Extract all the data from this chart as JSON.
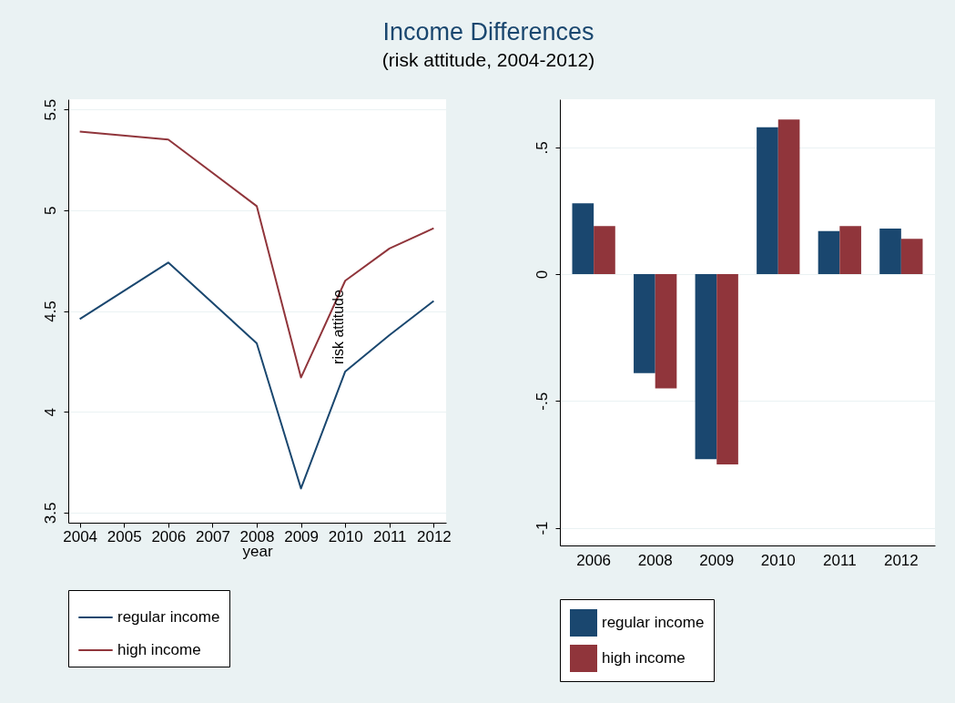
{
  "chart_data": [
    {
      "type": "line",
      "title": "Income Differences",
      "subtitle": "(risk attitude, 2004-2012)",
      "xlabel": "year",
      "annotations": [
        "risk attitude"
      ],
      "x": [
        2004,
        2006,
        2008,
        2009,
        2010,
        2011,
        2012
      ],
      "series": [
        {
          "name": "regular income",
          "color": "#1a476f",
          "values": [
            4.46,
            4.74,
            4.34,
            3.62,
            4.2,
            4.38,
            4.55
          ]
        },
        {
          "name": "high income",
          "color": "#90353b",
          "values": [
            5.39,
            5.35,
            5.02,
            4.17,
            4.65,
            4.81,
            4.91
          ]
        }
      ],
      "xlim": [
        2003.74,
        2012.28
      ],
      "xticks": [
        2004,
        2005,
        2006,
        2007,
        2008,
        2009,
        2010,
        2011,
        2012
      ],
      "ylim": [
        3.45,
        5.55
      ],
      "yticks": [
        3.5,
        4,
        4.5,
        5,
        5.5
      ],
      "grid": "y",
      "legend": "bottom"
    },
    {
      "type": "bar",
      "categories": [
        "2006",
        "2008",
        "2009",
        "2010",
        "2011",
        "2012"
      ],
      "series": [
        {
          "name": "regular income",
          "color": "#1a476f",
          "values": [
            0.28,
            -0.39,
            -0.73,
            0.58,
            0.17,
            0.18
          ]
        },
        {
          "name": "high income",
          "color": "#90353b",
          "values": [
            0.19,
            -0.45,
            -0.75,
            0.61,
            0.19,
            0.14
          ]
        }
      ],
      "ylim": [
        -1.07,
        0.69
      ],
      "yticks": [
        {
          "value": -1,
          "label": "-1"
        },
        {
          "value": -0.5,
          "label": "-.5"
        },
        {
          "value": 0,
          "label": "0"
        },
        {
          "value": 0.5,
          "label": ".5"
        }
      ],
      "grid": "y",
      "legend": "bottom"
    }
  ]
}
